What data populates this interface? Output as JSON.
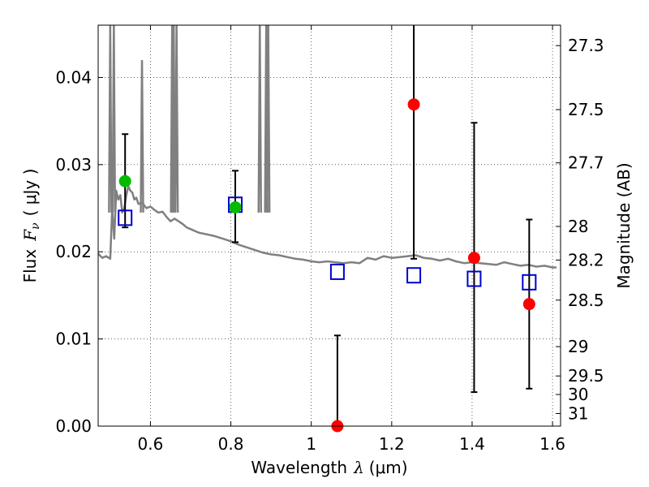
{
  "chart_data": {
    "type": "scatter",
    "xlabel_prefix": "Wavelength",
    "xlabel_symbol": "λ",
    "xlabel_unit": "(μm)",
    "ylabel_prefix": "Flux",
    "ylabel_symbol": "F",
    "ylabel_sub": "ν",
    "ylabel_unit": "( μJy )",
    "y2label": "Magnitude (AB)",
    "xlim": [
      0.47,
      1.62
    ],
    "ylim": [
      0.0,
      0.046
    ],
    "x_ticks": [
      0.6,
      0.8,
      1.0,
      1.2,
      1.4,
      1.6
    ],
    "x_tick_labels": [
      "0.6",
      "0.8",
      "1",
      "1.2",
      "1.4",
      "1.6"
    ],
    "y_ticks": [
      0.0,
      0.01,
      0.02,
      0.03,
      0.04
    ],
    "y_tick_labels": [
      "0.00",
      "0.01",
      "0.02",
      "0.03",
      "0.04"
    ],
    "mag_ticks": [
      27.3,
      27.5,
      27.7,
      28,
      28.2,
      28.5,
      29,
      29.5,
      30,
      31
    ],
    "mag_tick_labels": [
      "27.3",
      "27.5",
      "27.7",
      "28",
      "28.2",
      "28.5",
      "29",
      "29.5",
      "30",
      "31"
    ],
    "grid": true,
    "colors": {
      "model": "#808080",
      "observed": "#ff0000",
      "green": "#00bb00",
      "synthetic": "#0000cc",
      "errorbar": "#000000"
    },
    "model_spectrum": {
      "x": [
        0.47,
        0.48,
        0.49,
        0.5,
        0.505,
        0.51,
        0.515,
        0.52,
        0.525,
        0.53,
        0.535,
        0.54,
        0.545,
        0.55,
        0.555,
        0.56,
        0.565,
        0.57,
        0.58,
        0.59,
        0.6,
        0.61,
        0.62,
        0.63,
        0.64,
        0.65,
        0.66,
        0.67,
        0.68,
        0.69,
        0.7,
        0.72,
        0.74,
        0.76,
        0.78,
        0.8,
        0.82,
        0.84,
        0.86,
        0.88,
        0.9,
        0.92,
        0.94,
        0.96,
        0.98,
        1.0,
        1.02,
        1.04,
        1.06,
        1.08,
        1.1,
        1.12,
        1.14,
        1.16,
        1.18,
        1.2,
        1.22,
        1.24,
        1.26,
        1.28,
        1.3,
        1.32,
        1.34,
        1.36,
        1.38,
        1.4,
        1.42,
        1.44,
        1.46,
        1.48,
        1.5,
        1.52,
        1.54,
        1.56,
        1.58,
        1.6,
        1.61
      ],
      "y": [
        0.0198,
        0.0193,
        0.0195,
        0.0192,
        0.025,
        0.0215,
        0.027,
        0.026,
        0.0265,
        0.0245,
        0.025,
        0.0265,
        0.0275,
        0.027,
        0.0268,
        0.026,
        0.0262,
        0.0255,
        0.0256,
        0.025,
        0.0252,
        0.0248,
        0.0245,
        0.0246,
        0.024,
        0.0235,
        0.0238,
        0.0235,
        0.0232,
        0.0228,
        0.0226,
        0.0222,
        0.022,
        0.0218,
        0.0215,
        0.0212,
        0.0208,
        0.0205,
        0.0202,
        0.0199,
        0.0197,
        0.0196,
        0.0194,
        0.0192,
        0.0191,
        0.0189,
        0.0188,
        0.0189,
        0.0188,
        0.0187,
        0.0188,
        0.0187,
        0.0193,
        0.0191,
        0.0195,
        0.0193,
        0.0194,
        0.0195,
        0.0196,
        0.0193,
        0.0192,
        0.019,
        0.0192,
        0.0189,
        0.0187,
        0.0188,
        0.0187,
        0.0186,
        0.0185,
        0.0188,
        0.0186,
        0.0184,
        0.0185,
        0.0183,
        0.0184,
        0.0182,
        0.0182
      ]
    },
    "emission_lines": [
      {
        "x": 0.5,
        "peak": 0.046
      },
      {
        "x": 0.509,
        "peak": 0.046
      },
      {
        "x": 0.579,
        "peak": 0.042
      },
      {
        "x": 0.654,
        "peak": 0.046
      },
      {
        "x": 0.658,
        "peak": 0.046
      },
      {
        "x": 0.665,
        "peak": 0.046
      },
      {
        "x": 0.872,
        "peak": 0.046
      },
      {
        "x": 0.888,
        "peak": 0.046
      },
      {
        "x": 0.893,
        "peak": 0.046
      }
    ],
    "observed_red": [
      {
        "x": 1.065,
        "y": 0.0,
        "yerr_low": 0.0,
        "yerr_high": 0.0104
      },
      {
        "x": 1.255,
        "y": 0.0369,
        "yerr_low": 0.0192,
        "yerr_high": 0.046
      },
      {
        "x": 1.405,
        "y": 0.0193,
        "yerr_low": 0.0039,
        "yerr_high": 0.0348
      },
      {
        "x": 1.542,
        "y": 0.014,
        "yerr_low": 0.0043,
        "yerr_high": 0.0237
      }
    ],
    "observed_green": [
      {
        "x": 0.537,
        "y": 0.0281,
        "yerr_low": 0.0228,
        "yerr_high": 0.0335
      },
      {
        "x": 0.811,
        "y": 0.0251,
        "yerr_low": 0.0211,
        "yerr_high": 0.0293
      }
    ],
    "synthetic_squares": [
      {
        "x": 0.537,
        "y": 0.0239
      },
      {
        "x": 0.811,
        "y": 0.0254
      },
      {
        "x": 1.065,
        "y": 0.0177
      },
      {
        "x": 1.255,
        "y": 0.0173
      },
      {
        "x": 1.405,
        "y": 0.0169
      },
      {
        "x": 1.542,
        "y": 0.0165
      }
    ]
  }
}
